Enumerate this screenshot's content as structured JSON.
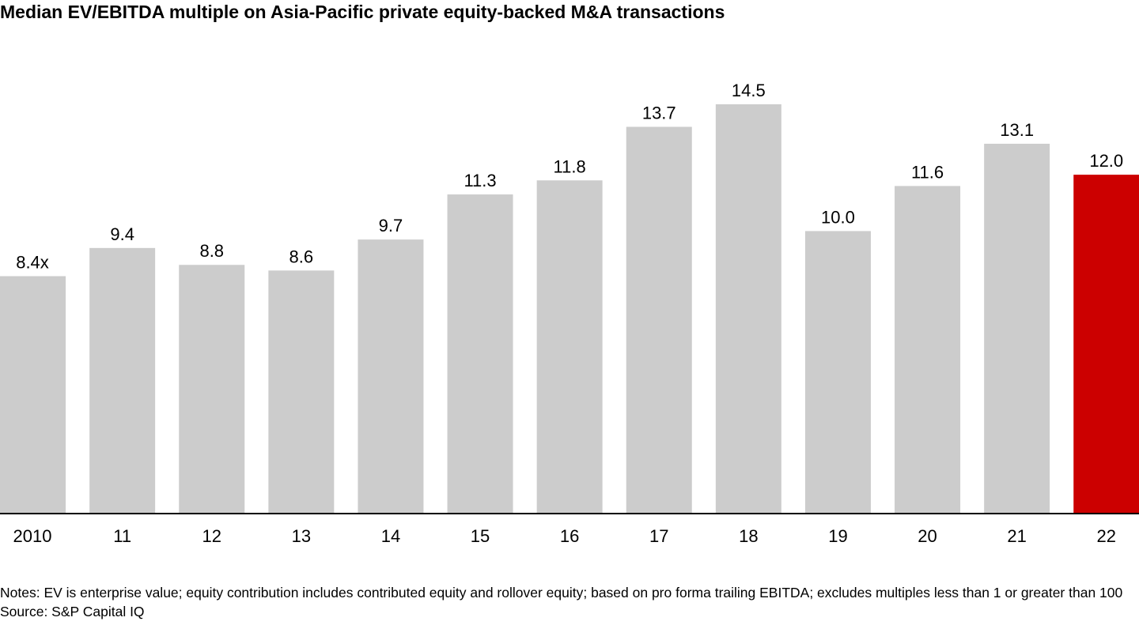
{
  "chart_data": {
    "type": "bar",
    "title": "Median EV/EBITDA multiple on Asia-Pacific private equity-backed M&A transactions",
    "categories": [
      "2010",
      "11",
      "12",
      "13",
      "14",
      "15",
      "16",
      "17",
      "18",
      "19",
      "20",
      "21",
      "22"
    ],
    "values": [
      8.4,
      9.4,
      8.8,
      8.6,
      9.7,
      11.3,
      11.8,
      13.7,
      14.5,
      10.0,
      11.6,
      13.1,
      12.0
    ],
    "data_labels": [
      "8.4x",
      "9.4",
      "8.8",
      "8.6",
      "9.7",
      "11.3",
      "11.8",
      "13.7",
      "14.5",
      "10.0",
      "11.6",
      "13.1",
      "12.0"
    ],
    "ylim": [
      0,
      14.5
    ],
    "grid": false,
    "legend": "none",
    "colors": {
      "bar": "#cccccc",
      "highlight": "#cc0000",
      "axis": "#000000"
    },
    "highlight_index": 12
  },
  "notes": "Notes: EV is enterprise value; equity contribution includes contributed equity and rollover equity; based on pro forma trailing EBITDA; excludes multiples less than 1 or greater than 100",
  "source": "Source: S&P Capital IQ"
}
